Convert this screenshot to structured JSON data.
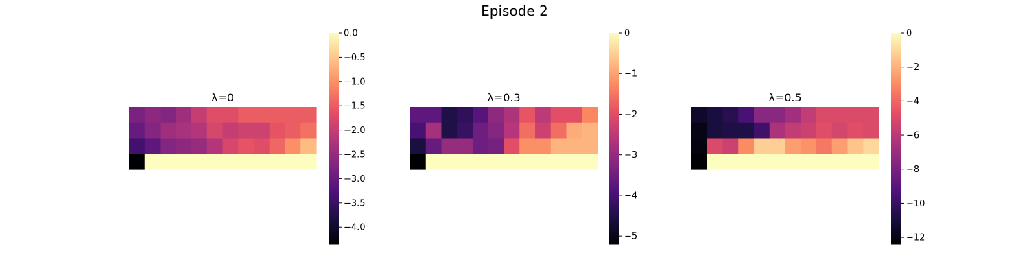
{
  "figure": {
    "title": "Episode 2"
  },
  "chart_data": [
    {
      "type": "heatmap",
      "title": "λ=0",
      "xlabel": "",
      "ylabel": "",
      "colormap": "magma",
      "vmin": -4.35,
      "vmax": 0,
      "colorbar_ticks": [
        0,
        -0.5,
        -1,
        -1.5,
        -2,
        -2.5,
        -3,
        -3.5,
        -4
      ],
      "colorbar_tick_labels": [
        "0.0",
        "−0.5",
        "−1.0",
        "−1.5",
        "−2.0",
        "−2.5",
        "−3.0",
        "−3.5",
        "−4.0"
      ],
      "values": [
        [
          -2.8,
          -2.6,
          -2.7,
          -2.4,
          -2.0,
          -1.7,
          -1.7,
          -1.5,
          -1.5,
          -1.5,
          -1.5,
          -1.5
        ],
        [
          -3.0,
          -2.7,
          -2.4,
          -2.3,
          -2.2,
          -1.8,
          -2.0,
          -1.9,
          -1.9,
          -1.6,
          -1.5,
          -1.3
        ],
        [
          -3.4,
          -3.1,
          -2.7,
          -2.6,
          -2.5,
          -2.2,
          -1.8,
          -1.6,
          -1.7,
          -1.4,
          -1.0,
          -0.6
        ],
        [
          -4.35,
          0,
          0,
          0,
          0,
          0,
          0,
          0,
          0,
          0,
          0,
          0
        ]
      ]
    },
    {
      "type": "heatmap",
      "title": "λ=0.3",
      "xlabel": "",
      "ylabel": "",
      "colormap": "magma",
      "vmin": -5.2,
      "vmax": 0,
      "colorbar_ticks": [
        0,
        -1,
        -2,
        -3,
        -4,
        -5
      ],
      "colorbar_tick_labels": [
        "0",
        "−1",
        "−2",
        "−3",
        "−4",
        "−5"
      ],
      "values": [
        [
          -3.7,
          -3.7,
          -4.5,
          -4.3,
          -3.8,
          -3.1,
          -2.7,
          -1.9,
          -2.5,
          -2.0,
          -2.0,
          -1.3
        ],
        [
          -4.0,
          -2.8,
          -4.5,
          -4.2,
          -3.5,
          -3.2,
          -2.6,
          -1.6,
          -2.3,
          -1.6,
          -0.9,
          -0.8
        ],
        [
          -4.6,
          -3.6,
          -3.0,
          -3.0,
          -3.5,
          -3.4,
          -2.0,
          -1.2,
          -1.2,
          -0.8,
          -0.8,
          -0.8
        ],
        [
          -5.2,
          0,
          0,
          0,
          0,
          0,
          0,
          0,
          0,
          0,
          0,
          0
        ]
      ]
    },
    {
      "type": "heatmap",
      "title": "λ=0.5",
      "xlabel": "",
      "ylabel": "",
      "colormap": "magma",
      "vmin": -12.4,
      "vmax": 0,
      "colorbar_ticks": [
        0,
        -2,
        -4,
        -6,
        -8,
        -10,
        -12
      ],
      "colorbar_tick_labels": [
        "0",
        "−2",
        "−4",
        "−6",
        "−8",
        "−10",
        "−12"
      ],
      "values": [
        [
          -11.5,
          -11.0,
          -10.5,
          -9.5,
          -7.5,
          -7.5,
          -6.8,
          -5.8,
          -5.0,
          -5.0,
          -5.0,
          -5.0
        ],
        [
          -12.0,
          -11.0,
          -10.8,
          -10.8,
          -9.8,
          -6.5,
          -5.8,
          -5.5,
          -4.8,
          -5.2,
          -4.8,
          -5.0
        ],
        [
          -12.1,
          -5.0,
          -5.5,
          -3.0,
          -1.2,
          -1.2,
          -2.5,
          -2.8,
          -3.5,
          -2.5,
          -1.5,
          -1.0
        ],
        [
          -12.4,
          0,
          0,
          0,
          0,
          0,
          0,
          0,
          0,
          0,
          0,
          0
        ]
      ]
    }
  ]
}
